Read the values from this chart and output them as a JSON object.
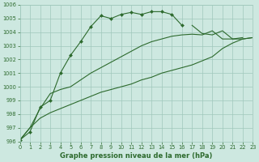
{
  "x": [
    0,
    1,
    2,
    3,
    4,
    5,
    6,
    7,
    8,
    9,
    10,
    11,
    12,
    13,
    14,
    15,
    16,
    17,
    18,
    19,
    20,
    21,
    22,
    23
  ],
  "series_marked": [
    996.1,
    996.7,
    998.5,
    999.0,
    1001.0,
    1002.3,
    1003.3,
    1004.4,
    1005.2,
    1005.0,
    1005.3,
    1005.45,
    1005.3,
    1005.5,
    1005.5,
    1005.3,
    1004.5,
    null,
    null,
    null,
    null,
    null,
    null,
    null
  ],
  "series_upper": [
    996.1,
    997.0,
    998.4,
    999.5,
    999.8,
    1000.0,
    1000.5,
    1001.0,
    1001.4,
    1001.8,
    1002.2,
    1002.6,
    1003.0,
    1003.3,
    1003.5,
    1003.7,
    1003.8,
    1003.85,
    1003.8,
    1004.1,
    1003.5,
    1003.5,
    1003.6,
    null
  ],
  "series_lower": [
    996.1,
    997.0,
    997.7,
    998.1,
    998.4,
    998.7,
    999.0,
    999.3,
    999.6,
    999.8,
    1000.0,
    1000.2,
    1000.5,
    1000.7,
    1001.0,
    1001.2,
    1001.4,
    1001.6,
    1001.9,
    1002.2,
    1002.8,
    1003.2,
    1003.5,
    1003.6
  ],
  "series_tail": [
    null,
    null,
    null,
    null,
    null,
    null,
    null,
    null,
    null,
    null,
    null,
    null,
    null,
    null,
    null,
    null,
    null,
    1004.5,
    1003.9,
    1003.8,
    1004.1,
    1003.5,
    1003.5,
    1003.6
  ],
  "line_color": "#2d6a2d",
  "bg_color": "#cde8e0",
  "grid_color": "#a0c8bc",
  "xlabel": "Graphe pression niveau de la mer (hPa)",
  "ylim": [
    996,
    1006
  ],
  "xlim": [
    0,
    23
  ],
  "yticks": [
    996,
    997,
    998,
    999,
    1000,
    1001,
    1002,
    1003,
    1004,
    1005,
    1006
  ],
  "xticks": [
    0,
    1,
    2,
    3,
    4,
    5,
    6,
    7,
    8,
    9,
    10,
    11,
    12,
    13,
    14,
    15,
    16,
    17,
    18,
    19,
    20,
    21,
    22,
    23
  ]
}
